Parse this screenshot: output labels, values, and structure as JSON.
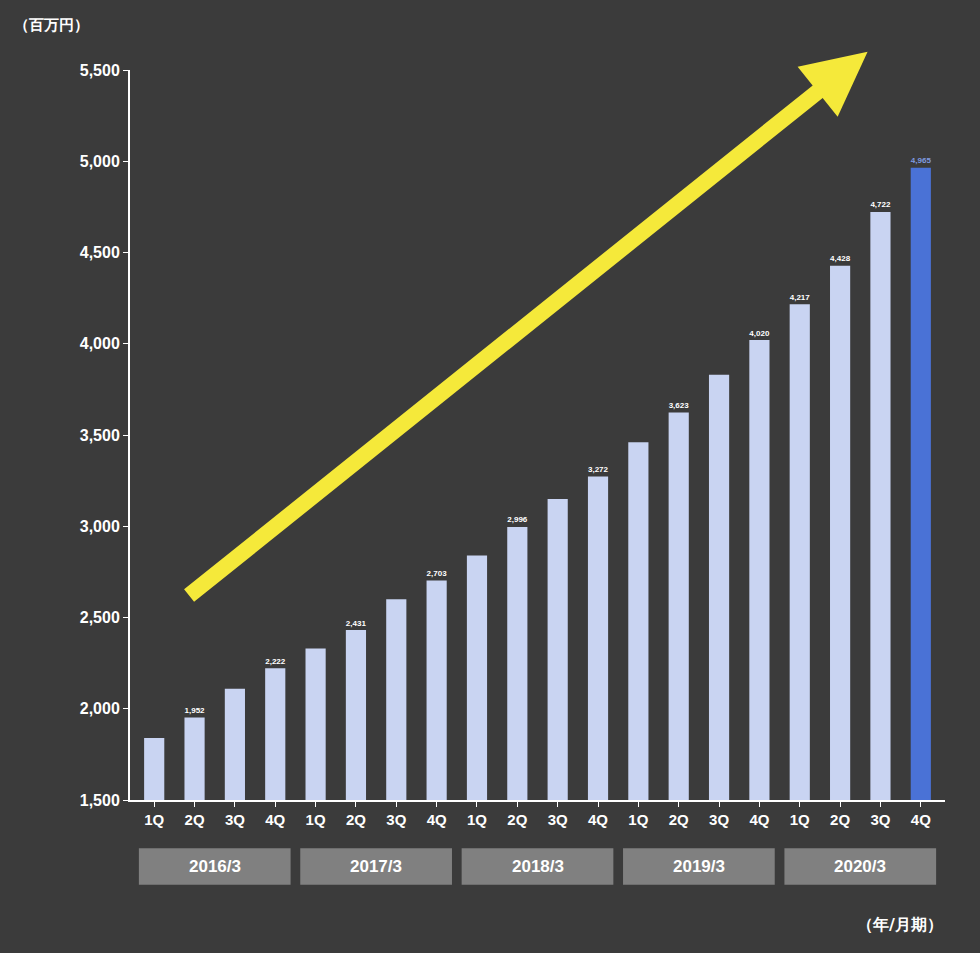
{
  "chart_data": {
    "type": "bar",
    "y_label": "（百万円）",
    "x_label": "（年/月期）",
    "categories": [
      "1Q",
      "2Q",
      "3Q",
      "4Q",
      "1Q",
      "2Q",
      "3Q",
      "4Q",
      "1Q",
      "2Q",
      "3Q",
      "4Q",
      "1Q",
      "2Q",
      "3Q",
      "4Q",
      "1Q",
      "2Q",
      "3Q",
      "4Q"
    ],
    "groups": [
      "2016/3",
      "2017/3",
      "2018/3",
      "2019/3",
      "2020/3"
    ],
    "values": [
      1840,
      1952,
      2110,
      2222,
      2330,
      2431,
      2600,
      2703,
      2840,
      2996,
      3150,
      3272,
      3460,
      3623,
      3830,
      4020,
      4217,
      4428,
      4722,
      4965
    ],
    "value_labels": [
      null,
      "1,952",
      null,
      "2,222",
      null,
      "2,431",
      null,
      "2,703",
      null,
      "2,996",
      null,
      "3,272",
      null,
      "3,623",
      null,
      "4,020",
      "4,217",
      "4,428",
      "4,722",
      "4,965"
    ],
    "colors": [
      "#c9d4f2",
      "#c9d4f2",
      "#c9d4f2",
      "#c9d4f2",
      "#c9d4f2",
      "#c9d4f2",
      "#c9d4f2",
      "#c9d4f2",
      "#c9d4f2",
      "#c9d4f2",
      "#c9d4f2",
      "#c9d4f2",
      "#c9d4f2",
      "#c9d4f2",
      "#c9d4f2",
      "#c9d4f2",
      "#c9d4f2",
      "#c9d4f2",
      "#c9d4f2",
      "#4a72d6"
    ],
    "data_labels": true,
    "grid": false,
    "ylim": [
      1500,
      5500
    ],
    "yticks": [
      {
        "value": 1500,
        "label": "1,500"
      },
      {
        "value": 2000,
        "label": "2,000"
      },
      {
        "value": 2500,
        "label": "2,500"
      },
      {
        "value": 3000,
        "label": "3,000"
      },
      {
        "value": 3500,
        "label": "3,500"
      },
      {
        "value": 4000,
        "label": "4,000"
      },
      {
        "value": 4500,
        "label": "4,500"
      },
      {
        "value": 5000,
        "label": "5,000"
      },
      {
        "value": 5500,
        "label": "5,500"
      }
    ]
  }
}
